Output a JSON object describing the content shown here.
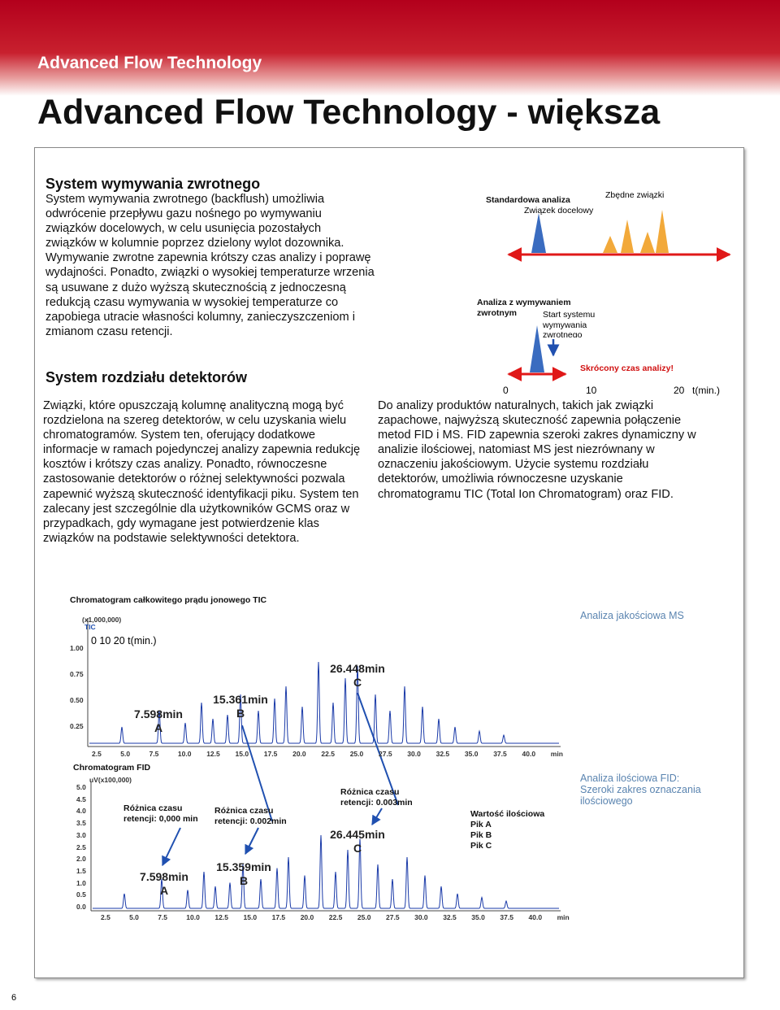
{
  "header": {
    "banner": "Advanced Flow Technology",
    "title": "Advanced Flow Technology - większa"
  },
  "backflush": {
    "heading": "System wymywania zwrotnego",
    "body": "System wymywania zwrotnego (backflush) umożliwia odwrócenie przepływu gazu nośnego po wymywaniu związków docelowych, w celu usunięcia pozostałych związków w kolumnie poprzez dzielony wylot dozownika. Wymywanie zwrotne zapewnia krótszy czas analizy i poprawę wydajności. Ponadto, związki o wysokiej temperaturze wrzenia są usuwane z dużo wyższą skutecznością z jednoczesną redukcją czasu wymywania w wysokiej temperaturze co zapobiega utracie własności kolumny, zanieczyszczeniom i zmianom czasu retencji."
  },
  "backflush_diagram": {
    "standard_label": "Standardowa analiza",
    "target_label": "Związek docelowy",
    "unwanted_label": "Zbędne związki",
    "backflush_label": "Analiza z wymywaniem zwrotnym",
    "start_label": "Start systemu wymywania zwrotnego",
    "shorter_label": "Skrócony czas analizy!",
    "axis_labels": [
      "0",
      "10",
      "20"
    ],
    "axis_unit": "t(min.)"
  },
  "detector": {
    "heading": "System rozdziału detektorów",
    "body_left": "Związki, które opuszczają kolumnę analityczną mogą być rozdzielona na szereg detektorów, w celu uzyskania wielu chromatogramów. System ten, oferujący dodatkowe informacje w ramach pojedynczej analizy zapewnia redukcję kosztów i krótszy czas analizy. Ponadto, równoczesne zastosowanie detektorów o różnej selektywności pozwala zapewnić wyższą skuteczność identyfikacji piku. System ten zalecany jest szczególnie dla użytkowników GCMS oraz w przypadkach, gdy wymagane jest potwierdzenie klas związków na podstawie selektywności detektora.",
    "body_right": "Do analizy produktów naturalnych, takich jak związki zapachowe, najwyższą skuteczność zapewnia połączenie metod FID i MS. FID zapewnia szeroki zakres dynamiczny w analizie ilościowej, natomiast MS jest niezrównany w oznaczeniu jakościowym. Użycie systemu rozdziału detektorów, umożliwia równoczesne uzyskanie chromatogramu TIC (Total Ion Chromatogram) oraz FID."
  },
  "tic": {
    "title": "Chromatogram całkowitego prądu jonowego TIC",
    "scale": "(x1,000,000)",
    "trace_label": "TIC",
    "overlay": "0 10 20 t(min.)",
    "yticks": [
      "1.00",
      "0.75",
      "0.50",
      "0.25"
    ],
    "xticks": [
      "2.5",
      "5.0",
      "7.5",
      "10.0",
      "12.5",
      "15.0",
      "17.5",
      "20.0",
      "22.5",
      "25.0",
      "27.5",
      "30.0",
      "32.5",
      "35.0",
      "37.5",
      "40.0"
    ],
    "x_unit": "min",
    "peaks": [
      {
        "time": "7.598min",
        "label": "A"
      },
      {
        "time": "15.361min",
        "label": "B"
      },
      {
        "time": "26.448min",
        "label": "C"
      }
    ],
    "note": "Analiza jakościowa MS"
  },
  "fid": {
    "title": "Chromatogram FID",
    "scale": "uV(x100,000)",
    "yticks": [
      "5.0",
      "4.5",
      "4.0",
      "3.5",
      "3.0",
      "2.5",
      "2.0",
      "1.5",
      "1.0",
      "0.5",
      "0.0"
    ],
    "xticks": [
      "2.5",
      "5.0",
      "7.5",
      "10.0",
      "12.5",
      "15.0",
      "17.5",
      "20.0",
      "22.5",
      "25.0",
      "27.5",
      "30.0",
      "32.5",
      "35.0",
      "37.5",
      "40.0"
    ],
    "x_unit": "min",
    "peaks": [
      {
        "time": "7.598min",
        "label": "A"
      },
      {
        "time": "15.359min",
        "label": "B"
      },
      {
        "time": "26.445min",
        "label": "C"
      }
    ],
    "differences": [
      "Różnica czasu retencji: 0,000 min",
      "Różnica czasu retencji: 0.002min",
      "Różnica czasu retencji: 0.003min"
    ],
    "quant_title": "Wartość ilościowa",
    "quant_rows": [
      "Pik A",
      "Pik B",
      "Pik C"
    ],
    "note": "Analiza ilościowa FID: Szeroki zakres oznaczania ilościowego"
  },
  "page_number": "6"
}
